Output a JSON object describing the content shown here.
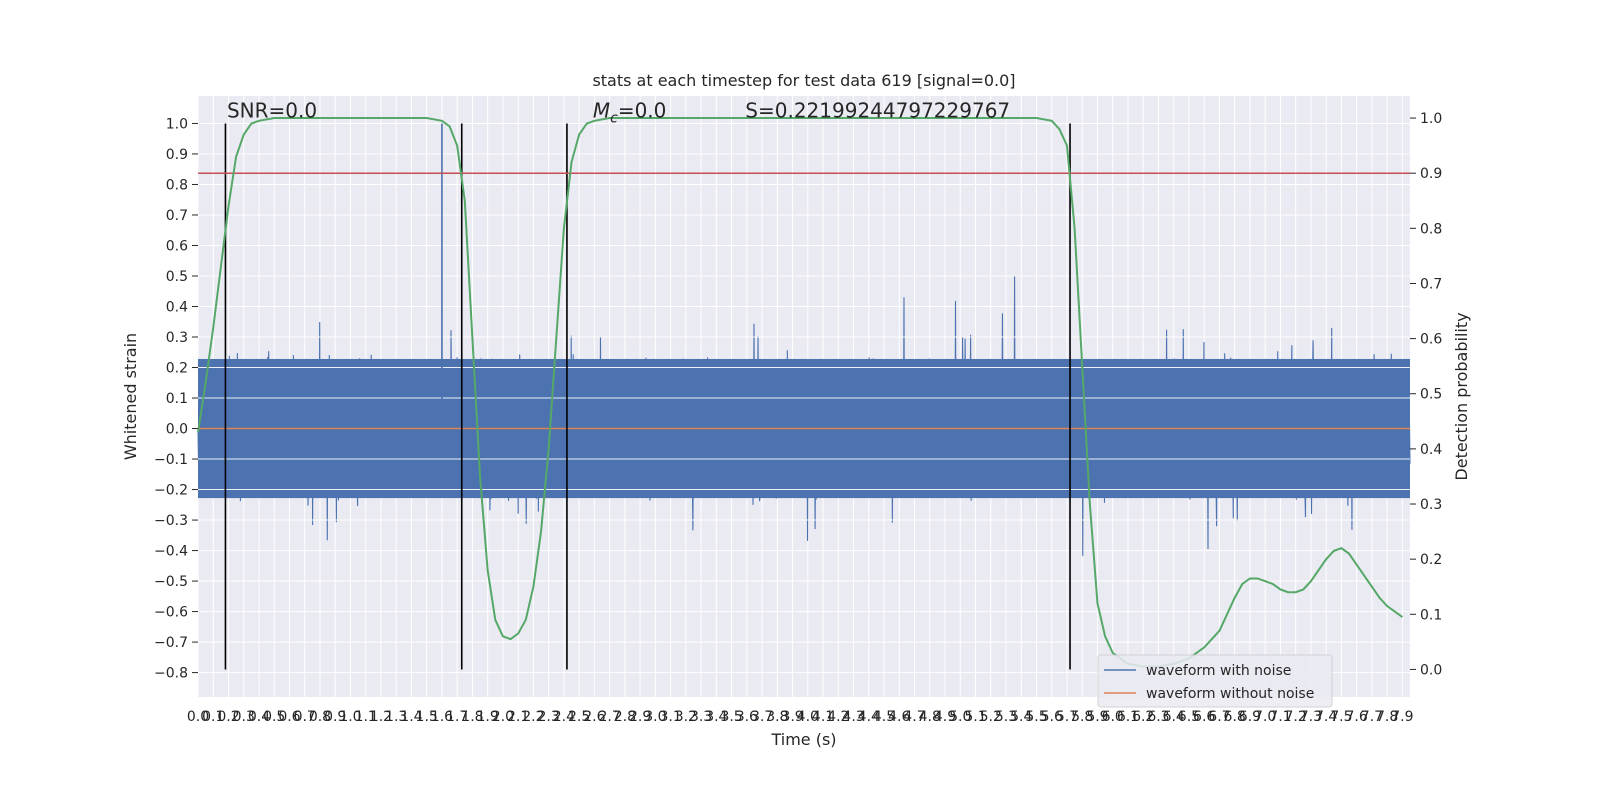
{
  "chart_data": {
    "type": "line",
    "title": "stats at each timestep for test data 619 [signal=0.0]",
    "xlabel": "Time (s)",
    "ylabel": "Whitened strain",
    "y2label": "Detection probability",
    "xlim": [
      0.0,
      7.95
    ],
    "ylim": [
      -0.88,
      1.09
    ],
    "y2lim": [
      -0.05,
      1.04
    ],
    "x_ticks": [
      "0.0",
      "0.1",
      "0.2",
      "0.3",
      "0.4",
      "0.5",
      "0.6",
      "0.7",
      "0.8",
      "0.9",
      "1.0",
      "1.1",
      "1.2",
      "1.3",
      "1.4",
      "1.5",
      "1.6",
      "1.7",
      "1.8",
      "1.9",
      "2.0",
      "2.1",
      "2.2",
      "2.3",
      "2.4",
      "2.5",
      "2.6",
      "2.7",
      "2.8",
      "2.9",
      "3.0",
      "3.1",
      "3.2",
      "3.3",
      "3.4",
      "3.5",
      "3.6",
      "3.7",
      "3.8",
      "3.9",
      "4.0",
      "4.1",
      "4.2",
      "4.3",
      "4.4",
      "4.5",
      "4.6",
      "4.7",
      "4.8",
      "4.9",
      "5.0",
      "5.1",
      "5.2",
      "5.3",
      "5.4",
      "5.5",
      "5.6",
      "5.7",
      "5.8",
      "5.9",
      "6.0",
      "6.1",
      "6.2",
      "6.3",
      "6.4",
      "6.5",
      "6.6",
      "6.7",
      "6.8",
      "6.9",
      "7.0",
      "7.1",
      "7.2",
      "7.3",
      "7.4",
      "7.5",
      "7.6",
      "7.7",
      "7.8",
      "7.9"
    ],
    "y_ticks": [
      "−0.8",
      "−0.7",
      "−0.6",
      "−0.5",
      "−0.4",
      "−0.3",
      "−0.2",
      "−0.1",
      "0.0",
      "0.1",
      "0.2",
      "0.3",
      "0.4",
      "0.5",
      "0.6",
      "0.7",
      "0.8",
      "0.9",
      "1.0"
    ],
    "y2_ticks": [
      "0.0",
      "0.1",
      "0.2",
      "0.3",
      "0.4",
      "0.5",
      "0.6",
      "0.7",
      "0.8",
      "0.9",
      "1.0"
    ],
    "annotations": [
      {
        "text": "SNR=0.0",
        "x": 0.19,
        "y": 1.02
      },
      {
        "text": "M",
        "sub": "c",
        "suffix": "=0.0",
        "x": 2.59,
        "y": 1.02
      },
      {
        "text": "S=0.22199244797229767",
        "x": 3.59,
        "y": 1.02
      }
    ],
    "vlines": [
      0.18,
      1.73,
      2.42,
      5.72
    ],
    "vline_range": [
      -0.79,
      1.0
    ],
    "threshold_y2": 0.9,
    "noise_amplitude": 0.24,
    "series": [
      {
        "name": "waveform with noise",
        "color": "#4c72b0",
        "kind": "noise"
      },
      {
        "name": "waveform without noise",
        "color": "#dd8452",
        "kind": "flat",
        "value": 0.0
      },
      {
        "color": "#55a868",
        "kind": "probability",
        "axis": "y2",
        "x": [
          0.0,
          0.05,
          0.1,
          0.15,
          0.2,
          0.25,
          0.3,
          0.35,
          0.4,
          0.5,
          0.6,
          0.8,
          1.0,
          1.2,
          1.4,
          1.5,
          1.6,
          1.65,
          1.7,
          1.75,
          1.8,
          1.85,
          1.9,
          1.95,
          2.0,
          2.05,
          2.1,
          2.15,
          2.2,
          2.25,
          2.3,
          2.35,
          2.4,
          2.45,
          2.5,
          2.55,
          2.6,
          2.7,
          3.0,
          4.0,
          5.0,
          5.5,
          5.6,
          5.65,
          5.7,
          5.75,
          5.8,
          5.85,
          5.9,
          5.95,
          6.0,
          6.05,
          6.1,
          6.15,
          6.2,
          6.3,
          6.4,
          6.5,
          6.6,
          6.7,
          6.75,
          6.8,
          6.85,
          6.9,
          6.95,
          7.0,
          7.05,
          7.1,
          7.15,
          7.2,
          7.25,
          7.3,
          7.35,
          7.4,
          7.45,
          7.5,
          7.55,
          7.6,
          7.65,
          7.7,
          7.75,
          7.8,
          7.85,
          7.9
        ],
        "y": [
          0.43,
          0.52,
          0.62,
          0.73,
          0.84,
          0.93,
          0.97,
          0.99,
          0.995,
          1.0,
          1.0,
          1.0,
          1.0,
          1.0,
          1.0,
          1.0,
          0.995,
          0.985,
          0.95,
          0.85,
          0.6,
          0.35,
          0.18,
          0.09,
          0.06,
          0.055,
          0.065,
          0.09,
          0.15,
          0.25,
          0.4,
          0.6,
          0.8,
          0.92,
          0.97,
          0.99,
          0.995,
          1.0,
          1.0,
          1.0,
          1.0,
          1.0,
          0.995,
          0.98,
          0.95,
          0.8,
          0.55,
          0.3,
          0.12,
          0.06,
          0.03,
          0.02,
          0.01,
          0.008,
          0.005,
          0.005,
          0.01,
          0.02,
          0.04,
          0.07,
          0.1,
          0.13,
          0.155,
          0.165,
          0.165,
          0.16,
          0.155,
          0.145,
          0.14,
          0.14,
          0.145,
          0.16,
          0.18,
          0.2,
          0.215,
          0.22,
          0.21,
          0.19,
          0.17,
          0.15,
          0.13,
          0.115,
          0.105,
          0.095
        ]
      }
    ],
    "legend": {
      "placement": "lower-right",
      "entries": [
        "waveform with noise",
        "waveform without noise"
      ]
    },
    "grid": true
  }
}
